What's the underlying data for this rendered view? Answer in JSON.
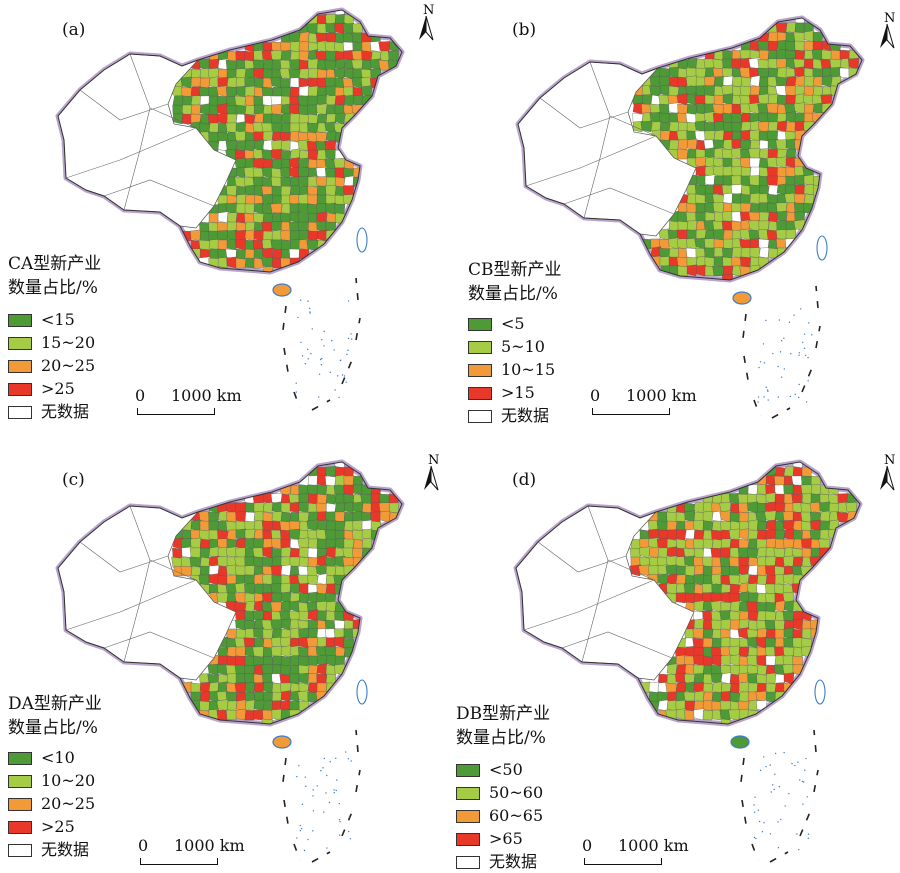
{
  "north_label": "N",
  "scale": {
    "zero": "0",
    "distance": "1000 km"
  },
  "no_data_color": "#ffffff",
  "panels": [
    {
      "label": "(a)",
      "legend_title": [
        "CA型新产业",
        "数量占比/%"
      ],
      "classes": [
        {
          "label": "<15",
          "color": "#4d9a36"
        },
        {
          "label": "15~20",
          "color": "#a6cc45"
        },
        {
          "label": "20~25",
          "color": "#f29a38"
        },
        {
          "label": ">25",
          "color": "#e8382a"
        },
        {
          "label": "无数据",
          "color": "#ffffff"
        }
      ]
    },
    {
      "label": "(b)",
      "legend_title": [
        "CB型新产业",
        "数量占比/%"
      ],
      "classes": [
        {
          "label": "<5",
          "color": "#4d9a36"
        },
        {
          "label": "5~10",
          "color": "#a6cc45"
        },
        {
          "label": "10~15",
          "color": "#f29a38"
        },
        {
          "label": ">15",
          "color": "#e8382a"
        },
        {
          "label": "无数据",
          "color": "#ffffff"
        }
      ]
    },
    {
      "label": "(c)",
      "legend_title": [
        "DA型新产业",
        "数量占比/%"
      ],
      "classes": [
        {
          "label": "<10",
          "color": "#4d9a36"
        },
        {
          "label": "10~20",
          "color": "#a6cc45"
        },
        {
          "label": "20~25",
          "color": "#f29a38"
        },
        {
          "label": ">25",
          "color": "#e8382a"
        },
        {
          "label": "无数据",
          "color": "#ffffff"
        }
      ]
    },
    {
      "label": "(d)",
      "legend_title": [
        "DB型新产业",
        "数量占比/%"
      ],
      "classes": [
        {
          "label": "<50",
          "color": "#4d9a36"
        },
        {
          "label": "50~60",
          "color": "#a6cc45"
        },
        {
          "label": "60~65",
          "color": "#f29a38"
        },
        {
          "label": ">65",
          "color": "#e8382a"
        },
        {
          "label": "无数据",
          "color": "#ffffff"
        }
      ]
    }
  ]
}
